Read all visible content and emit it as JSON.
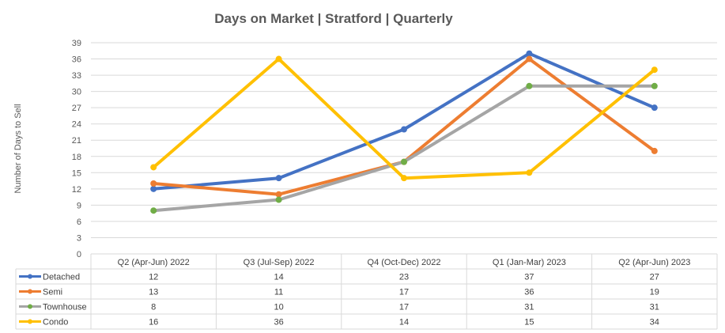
{
  "chart_data": {
    "type": "line",
    "title": "Days on Market | Stratford | Quarterly",
    "xlabel": "",
    "ylabel": "Number of Days to Sell",
    "ylim": [
      0,
      39
    ],
    "yticks": [
      0,
      3,
      6,
      9,
      12,
      15,
      18,
      21,
      24,
      27,
      30,
      33,
      36,
      39
    ],
    "grid": true,
    "legend": "data-table",
    "categories": [
      "Q2 (Apr-Jun) 2022",
      "Q3 (Jul-Sep) 2022",
      "Q4 (Oct-Dec) 2022",
      "Q1 (Jan-Mar) 2023",
      "Q2 (Apr-Jun) 2023"
    ],
    "series": [
      {
        "name": "Detached",
        "color": "#4472C4",
        "values": [
          12,
          14,
          23,
          37,
          27
        ]
      },
      {
        "name": "Semi",
        "color": "#ED7D31",
        "values": [
          13,
          11,
          17,
          36,
          19
        ]
      },
      {
        "name": "Townhouse",
        "color": "#A5A5A5",
        "marker_color": "#70AD47",
        "values": [
          8,
          10,
          17,
          31,
          31
        ]
      },
      {
        "name": "Condo",
        "color": "#FFC000",
        "values": [
          16,
          36,
          14,
          15,
          34
        ]
      }
    ]
  }
}
